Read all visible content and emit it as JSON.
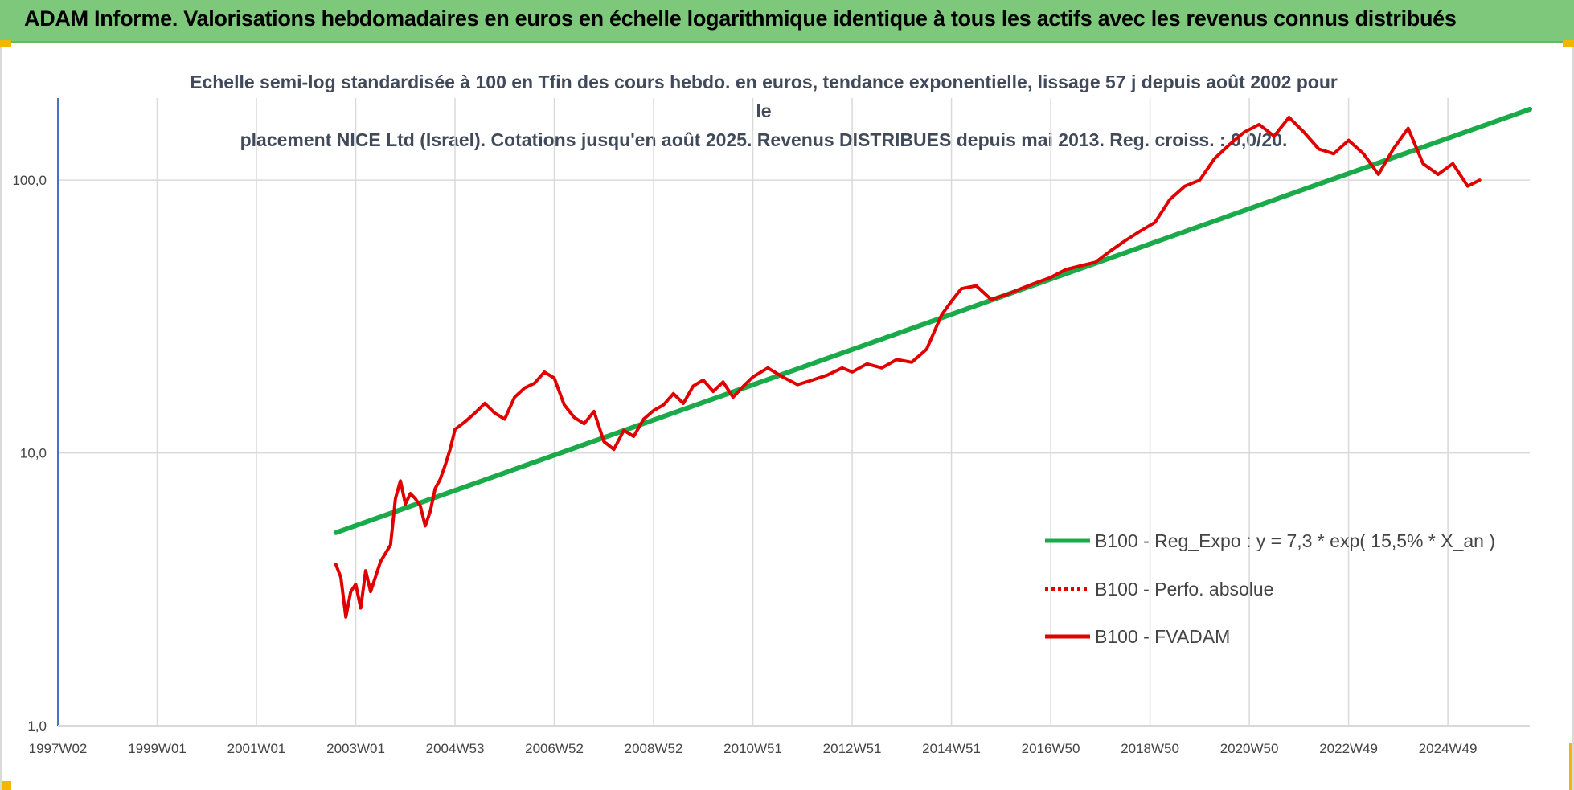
{
  "header": {
    "title": "ADAM Informe. Valorisations hebdomadaires en euros en échelle logarithmique identique à tous les actifs avec les revenus connus distribués"
  },
  "colors": {
    "banner": "#7dc87a",
    "accent_corner": "#f2b705",
    "trend_line": "#1aaa4a",
    "perf_line": "#e00000",
    "fvadam_line": "#e00000",
    "grid": "#d9d9d9",
    "axis": "#4472c4"
  },
  "chart_data": {
    "type": "line",
    "title": "Echelle semi-log standardisée à 100 en Tfin des cours hebdo. en euros, tendance exponentielle, lissage 57 j depuis août 2002 pour le placement NICE Ltd (Israel). Cotations jusqu'en août 2025. Revenus DISTRIBUES depuis mai 2013. Reg. croiss. : 0,0/20.",
    "title_lines": [
      "Echelle semi-log standardisée à 100 en Tfin des cours hebdo. en euros, tendance exponentielle, lissage 57 j depuis août 2002 pour le",
      "placement NICE Ltd (Israel). Cotations jusqu'en août 2025. Revenus DISTRIBUES depuis mai 2013. Reg. croiss. : 0,0/20."
    ],
    "y_scale": "log",
    "ylim": [
      1,
      200
    ],
    "xlim": [
      1997.0,
      2026.65
    ],
    "grid": true,
    "legend_position": "bottom-right",
    "y_ticks": [
      {
        "value": 100,
        "label": "100,0"
      },
      {
        "value": 10,
        "label": "10,0"
      },
      {
        "value": 1,
        "label": "1,0"
      }
    ],
    "x_ticks": [
      {
        "value": 1997.0,
        "label": "1997W02"
      },
      {
        "value": 1999.0,
        "label": "1999W01"
      },
      {
        "value": 2001.0,
        "label": "2001W01"
      },
      {
        "value": 2003.0,
        "label": "2003W01"
      },
      {
        "value": 2005.0,
        "label": "2004W53"
      },
      {
        "value": 2007.0,
        "label": "2006W52"
      },
      {
        "value": 2009.0,
        "label": "2008W52"
      },
      {
        "value": 2011.0,
        "label": "2010W51"
      },
      {
        "value": 2013.0,
        "label": "2012W51"
      },
      {
        "value": 2015.0,
        "label": "2014W51"
      },
      {
        "value": 2017.0,
        "label": "2016W50"
      },
      {
        "value": 2019.0,
        "label": "2018W50"
      },
      {
        "value": 2021.0,
        "label": "2020W50"
      },
      {
        "value": 2023.0,
        "label": "2022W49"
      },
      {
        "value": 2025.0,
        "label": "2024W49"
      }
    ],
    "series": [
      {
        "name": "B100 - Reg_Expo : y = 7,3 * exp( 15,5% *  X_an )",
        "color": "#1aaa4a",
        "style": "solid",
        "x": [
          2002.6,
          2026.65
        ],
        "y": [
          5.1,
          182
        ]
      },
      {
        "name": "B100 - Perfo. absolue",
        "color": "#e00000",
        "style": "dotted",
        "x": [],
        "y": []
      },
      {
        "name": "B100 - FVADAM",
        "color": "#e00000",
        "style": "solid",
        "x": [
          2002.6,
          2002.7,
          2002.8,
          2002.9,
          2003.0,
          2003.1,
          2003.2,
          2003.3,
          2003.5,
          2003.7,
          2003.8,
          2003.9,
          2004.0,
          2004.1,
          2004.2,
          2004.3,
          2004.4,
          2004.5,
          2004.6,
          2004.7,
          2004.8,
          2004.9,
          2005.0,
          2005.2,
          2005.4,
          2005.6,
          2005.8,
          2006.0,
          2006.2,
          2006.4,
          2006.6,
          2006.8,
          2007.0,
          2007.2,
          2007.4,
          2007.6,
          2007.8,
          2008.0,
          2008.2,
          2008.4,
          2008.6,
          2008.8,
          2009.0,
          2009.2,
          2009.4,
          2009.6,
          2009.8,
          2010.0,
          2010.2,
          2010.4,
          2010.6,
          2010.8,
          2011.0,
          2011.3,
          2011.6,
          2011.9,
          2012.2,
          2012.5,
          2012.8,
          2013.0,
          2013.3,
          2013.6,
          2013.9,
          2014.2,
          2014.5,
          2014.8,
          2015.0,
          2015.2,
          2015.5,
          2015.8,
          2016.1,
          2016.4,
          2016.7,
          2017.0,
          2017.3,
          2017.6,
          2017.9,
          2018.2,
          2018.5,
          2018.8,
          2019.1,
          2019.4,
          2019.7,
          2020.0,
          2020.3,
          2020.6,
          2020.9,
          2021.2,
          2021.5,
          2021.8,
          2022.1,
          2022.4,
          2022.7,
          2023.0,
          2023.3,
          2023.6,
          2023.9,
          2024.2,
          2024.5,
          2024.8,
          2025.1,
          2025.4,
          2025.64
        ],
        "y": [
          3.9,
          3.5,
          2.5,
          3.1,
          3.3,
          2.7,
          3.7,
          3.1,
          4.0,
          4.6,
          6.8,
          7.9,
          6.5,
          7.1,
          6.8,
          6.4,
          5.4,
          6.1,
          7.4,
          8.0,
          9.0,
          10.3,
          12.2,
          13.0,
          14.0,
          15.2,
          14.0,
          13.3,
          16.0,
          17.3,
          18.0,
          19.8,
          18.8,
          15.0,
          13.5,
          12.8,
          14.2,
          11.0,
          10.3,
          12.1,
          11.5,
          13.3,
          14.3,
          15.0,
          16.5,
          15.2,
          17.6,
          18.5,
          16.8,
          18.2,
          16.0,
          17.5,
          19.0,
          20.5,
          19.0,
          17.8,
          18.5,
          19.3,
          20.5,
          19.8,
          21.2,
          20.5,
          22.0,
          21.5,
          24.0,
          32.0,
          36.0,
          40.0,
          41.0,
          36.5,
          38.0,
          40.0,
          42.0,
          44.0,
          47.0,
          48.5,
          50.0,
          55.0,
          60.0,
          65.0,
          70.0,
          85.0,
          95.0,
          100.0,
          120.0,
          135.0,
          150.0,
          160.0,
          145.0,
          170.0,
          150.0,
          130.0,
          125.0,
          140.0,
          125.0,
          105.0,
          130.0,
          155.0,
          115.0,
          105.0,
          115.0,
          95.0,
          100.0
        ]
      }
    ]
  }
}
